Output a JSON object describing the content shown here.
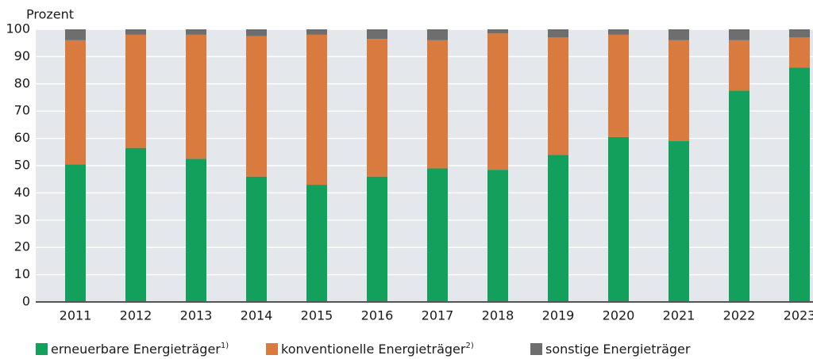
{
  "chart_data": {
    "type": "stacked_bar",
    "y_label": "Prozent",
    "categories": [
      "2011",
      "2012",
      "2013",
      "2014",
      "2015",
      "2016",
      "2017",
      "2018",
      "2019",
      "2020",
      "2021",
      "2022",
      "2023"
    ],
    "series": [
      {
        "name": "erneuerbare Energieträger",
        "note": "1)",
        "color": "#12a05c",
        "values": [
          50.5,
          56.5,
          52.5,
          46,
          43,
          46,
          49,
          48.5,
          54,
          60.5,
          59,
          77.5,
          86
        ]
      },
      {
        "name": "konventionelle Energieträger",
        "note": "2)",
        "color": "#d97b3f",
        "values": [
          45.5,
          41.5,
          45.5,
          51.5,
          55,
          50.5,
          47,
          50,
          43,
          37.5,
          37,
          18.5,
          11
        ]
      },
      {
        "name": "sonstige Energieträger",
        "color": "#6e6e6e",
        "values": [
          4,
          2,
          2,
          2.5,
          2,
          3.5,
          4,
          1.5,
          3,
          2,
          4,
          4,
          3
        ]
      }
    ],
    "ylim": [
      0,
      100
    ],
    "yticks": [
      0,
      10,
      20,
      30,
      40,
      50,
      60,
      70,
      80,
      90,
      100
    ],
    "grid": true
  }
}
